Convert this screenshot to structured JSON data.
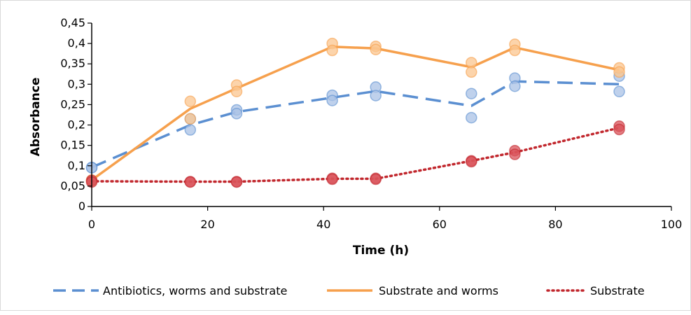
{
  "chart_data": {
    "type": "line",
    "xlabel": "Time (h)",
    "ylabel": "Absorbance",
    "xlim": [
      0,
      100
    ],
    "ylim": [
      0,
      0.45
    ],
    "x_ticks": [
      "0",
      "20",
      "40",
      "60",
      "80",
      "100"
    ],
    "y_ticks": [
      "0",
      "0,05",
      "0,1",
      "0,15",
      "0,2",
      "0,25",
      "0,3",
      "0,35",
      "0,4",
      "0,45"
    ],
    "grid": false,
    "legend_position": "bottom",
    "series": [
      {
        "name": "Antibiotics, worms and substrate",
        "color": "#5b8fd1",
        "line_style": "dashed",
        "x": [
          0,
          17,
          25,
          41.5,
          49,
          65.5,
          73,
          91
        ],
        "y": [
          0.096,
          0.2,
          0.232,
          0.267,
          0.283,
          0.247,
          0.307,
          0.3
        ],
        "replicates": [
          [
            0,
            0.096
          ],
          [
            0,
            0.095
          ],
          [
            17,
            0.215
          ],
          [
            17,
            0.188
          ],
          [
            25,
            0.237
          ],
          [
            25,
            0.228
          ],
          [
            41.5,
            0.273
          ],
          [
            41.5,
            0.26
          ],
          [
            49,
            0.293
          ],
          [
            49,
            0.272
          ],
          [
            65.5,
            0.277
          ],
          [
            65.5,
            0.218
          ],
          [
            73,
            0.315
          ],
          [
            73,
            0.295
          ],
          [
            91,
            0.32
          ],
          [
            91,
            0.282
          ]
        ]
      },
      {
        "name": "Substrate and worms",
        "color": "#f6a04d",
        "line_style": "solid",
        "x": [
          0,
          17,
          25,
          41.5,
          49,
          65.5,
          73,
          91
        ],
        "y": [
          0.065,
          0.24,
          0.29,
          0.392,
          0.388,
          0.342,
          0.39,
          0.335
        ],
        "replicates": [
          [
            0,
            0.065
          ],
          [
            0,
            0.062
          ],
          [
            17,
            0.258
          ],
          [
            17,
            0.215
          ],
          [
            25,
            0.298
          ],
          [
            25,
            0.282
          ],
          [
            41.5,
            0.4
          ],
          [
            41.5,
            0.383
          ],
          [
            49,
            0.393
          ],
          [
            49,
            0.385
          ],
          [
            65.5,
            0.353
          ],
          [
            65.5,
            0.33
          ],
          [
            73,
            0.398
          ],
          [
            73,
            0.383
          ],
          [
            91,
            0.34
          ],
          [
            91,
            0.33
          ]
        ]
      },
      {
        "name": "Substrate",
        "color": "#c1272d",
        "line_style": "dotted",
        "x": [
          0,
          17,
          25,
          41.5,
          49,
          65.5,
          73,
          91
        ],
        "y": [
          0.062,
          0.061,
          0.061,
          0.068,
          0.068,
          0.112,
          0.133,
          0.193
        ],
        "replicates": [
          [
            0,
            0.064
          ],
          [
            0,
            0.06
          ],
          [
            17,
            0.061
          ],
          [
            17,
            0.06
          ],
          [
            25,
            0.061
          ],
          [
            25,
            0.06
          ],
          [
            41.5,
            0.069
          ],
          [
            41.5,
            0.067
          ],
          [
            49,
            0.069
          ],
          [
            49,
            0.067
          ],
          [
            65.5,
            0.112
          ],
          [
            65.5,
            0.11
          ],
          [
            73,
            0.137
          ],
          [
            73,
            0.128
          ],
          [
            91,
            0.197
          ],
          [
            91,
            0.189
          ]
        ]
      }
    ]
  }
}
